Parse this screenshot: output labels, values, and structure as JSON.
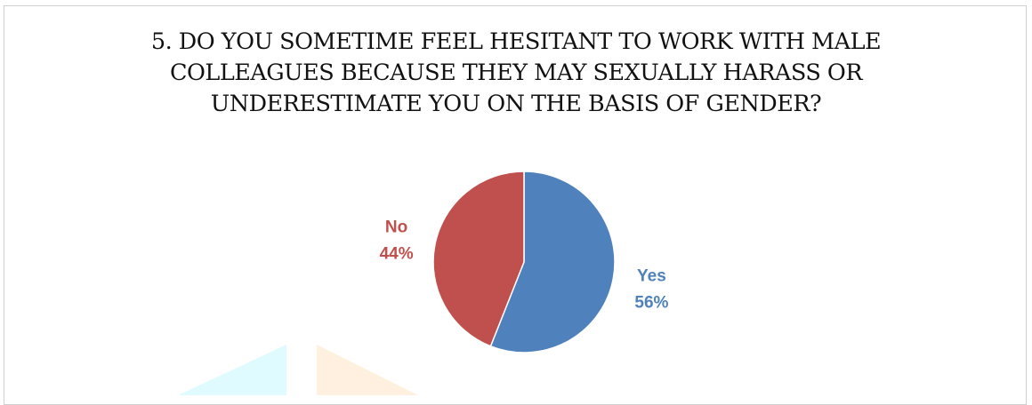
{
  "chart_data": {
    "type": "pie",
    "title_lines": [
      "5. DO YOU SOMETIME FEEL HESITANT TO WORK WITH MALE",
      "COLLEAGUES BECAUSE THEY MAY SEXUALLY HARASS OR",
      "UNDERESTIMATE YOU ON THE BASIS OF GENDER?"
    ],
    "slices": [
      {
        "label": "Yes",
        "value": 56,
        "value_label": "56%",
        "color": "#4F81BD"
      },
      {
        "label": "No",
        "value": 44,
        "value_label": "44%",
        "color": "#C0504D"
      }
    ],
    "start_angle_deg": 0,
    "direction": "clockwise",
    "legend": "none",
    "data_labels": "outside"
  }
}
